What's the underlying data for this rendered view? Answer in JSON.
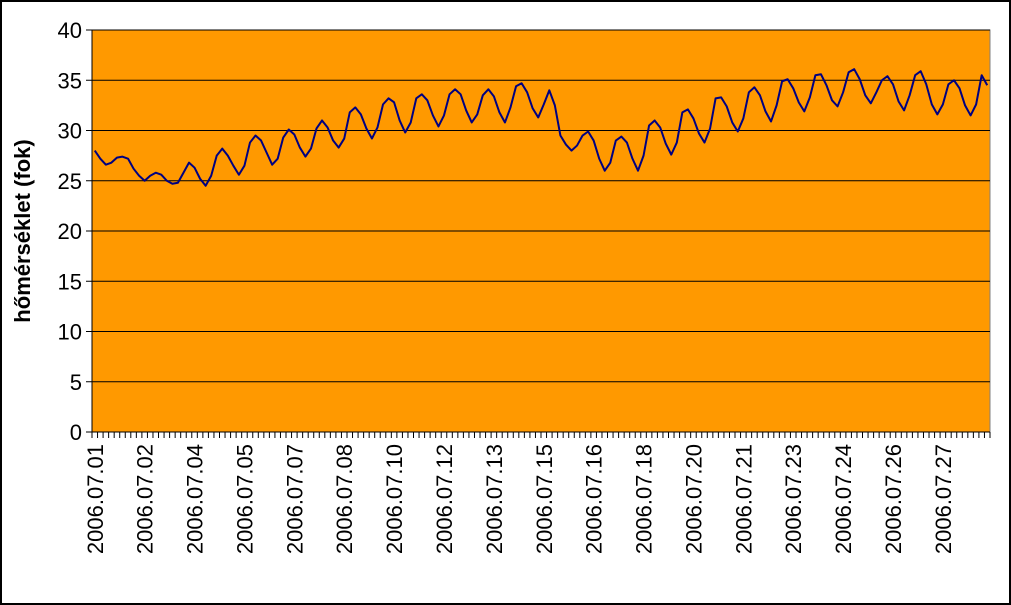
{
  "chart_data": {
    "type": "line",
    "y_label": "hőmérséklet (fok)",
    "categories": [
      "2006.07.01",
      null,
      null,
      null,
      null,
      null,
      null,
      null,
      null,
      "2006.07.02",
      null,
      null,
      null,
      null,
      null,
      null,
      null,
      null,
      "2006.07.04",
      null,
      null,
      null,
      null,
      null,
      null,
      null,
      null,
      "2006.07.05",
      null,
      null,
      null,
      null,
      null,
      null,
      null,
      null,
      "2006.07.07",
      null,
      null,
      null,
      null,
      null,
      null,
      null,
      null,
      "2006.07.08",
      null,
      null,
      null,
      null,
      null,
      null,
      null,
      null,
      "2006.07.10",
      null,
      null,
      null,
      null,
      null,
      null,
      null,
      null,
      "2006.07.12",
      null,
      null,
      null,
      null,
      null,
      null,
      null,
      null,
      "2006.07.13",
      null,
      null,
      null,
      null,
      null,
      null,
      null,
      null,
      "2006.07.15",
      null,
      null,
      null,
      null,
      null,
      null,
      null,
      null,
      "2006.07.16",
      null,
      null,
      null,
      null,
      null,
      null,
      null,
      null,
      "2006.07.18",
      null,
      null,
      null,
      null,
      null,
      null,
      null,
      null,
      "2006.07.20",
      null,
      null,
      null,
      null,
      null,
      null,
      null,
      null,
      "2006.07.21",
      null,
      null,
      null,
      null,
      null,
      null,
      null,
      null,
      "2006.07.23",
      null,
      null,
      null,
      null,
      null,
      null,
      null,
      null,
      "2006.07.24",
      null,
      null,
      null,
      null,
      null,
      null,
      null,
      null,
      "2006.07.26",
      null,
      null,
      null,
      null,
      null,
      null,
      null,
      null,
      "2006.07.27",
      null,
      null,
      null,
      null,
      null,
      null,
      null,
      null
    ],
    "values": [
      28,
      27.2,
      26.6,
      26.8,
      27.3,
      27.4,
      27.2,
      26.2,
      25.5,
      25.0,
      25.5,
      25.8,
      25.6,
      25.0,
      24.7,
      24.8,
      25.8,
      26.8,
      26.3,
      25.2,
      24.5,
      25.5,
      27.5,
      28.2,
      27.5,
      26.5,
      25.6,
      26.5,
      28.8,
      29.5,
      29,
      27.8,
      26.6,
      27.2,
      29.3,
      30.1,
      29.6,
      28.3,
      27.4,
      28.2,
      30.2,
      31.0,
      30.3,
      29,
      28.3,
      29.2,
      31.8,
      32.3,
      31.6,
      30.2,
      29.2,
      30.3,
      32.6,
      33.2,
      32.8,
      31,
      29.8,
      30.8,
      33.2,
      33.6,
      33,
      31.5,
      30.4,
      31.5,
      33.6,
      34.1,
      33.6,
      32,
      30.8,
      31.6,
      33.5,
      34.1,
      33.4,
      31.8,
      30.8,
      32.3,
      34.4,
      34.7,
      33.8,
      32.2,
      31.3,
      32.6,
      34,
      32.5,
      29.5,
      28.6,
      28.0,
      28.5,
      29.5,
      29.9,
      29,
      27.2,
      26.0,
      26.8,
      29,
      29.4,
      28.8,
      27.2,
      26.0,
      27.5,
      30.5,
      31.0,
      30.3,
      28.7,
      27.6,
      28.8,
      31.8,
      32.1,
      31.2,
      29.7,
      28.8,
      30.2,
      33.2,
      33.3,
      32.4,
      30.8,
      29.9,
      31.2,
      33.8,
      34.3,
      33.5,
      31.9,
      30.9,
      32.5,
      34.9,
      35.1,
      34.2,
      32.8,
      31.9,
      33.3,
      35.5,
      35.6,
      34.5,
      33,
      32.4,
      33.8,
      35.8,
      36.1,
      35.1,
      33.5,
      32.7,
      33.8,
      35,
      35.4,
      34.6,
      32.9,
      32,
      33.5,
      35.5,
      35.9,
      34.6,
      32.6,
      31.6,
      32.6,
      34.6,
      35,
      34.2,
      32.5,
      31.5,
      32.6,
      35.5,
      34.5
    ],
    "color": "#000080",
    "plot_color": "#ff9900",
    "ylim": [
      0,
      40
    ],
    "yticks": [
      0,
      5,
      10,
      15,
      20,
      25,
      30,
      35,
      40
    ],
    "grid": true
  }
}
